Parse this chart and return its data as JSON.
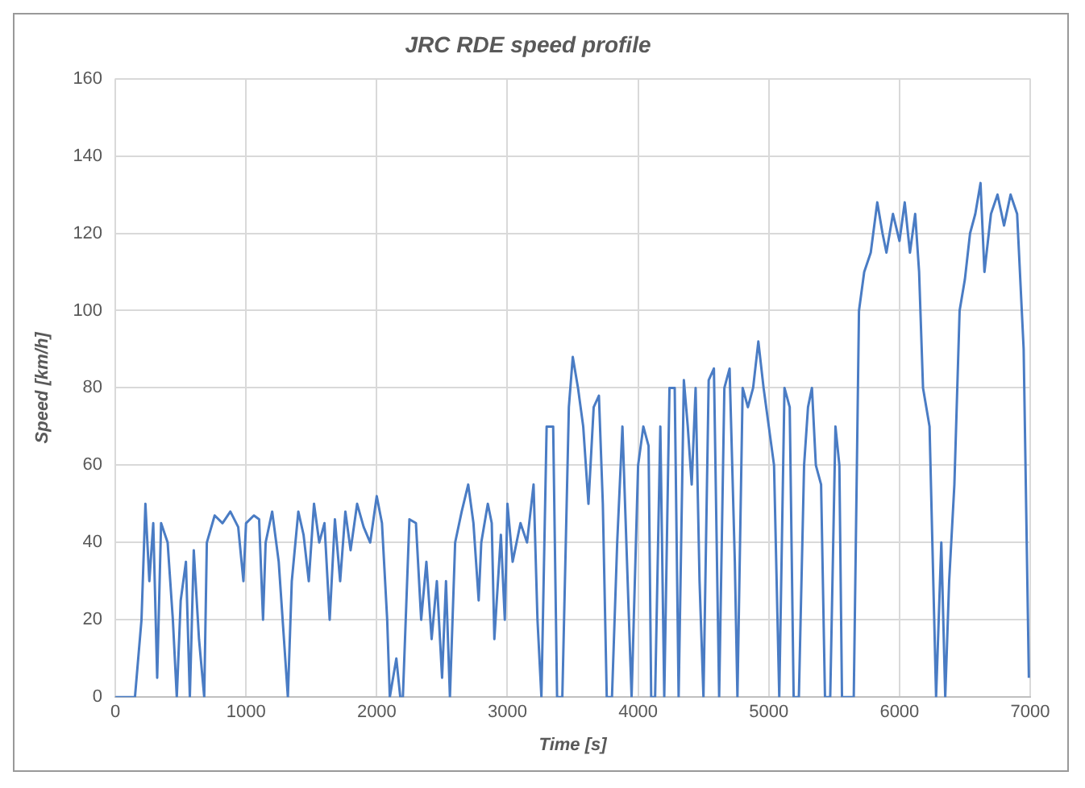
{
  "chart_data": {
    "type": "line",
    "title": "JRC RDE speed profile",
    "xlabel": "Time [s]",
    "ylabel": "Speed [km/h]",
    "x": [
      0,
      150,
      200,
      230,
      260,
      290,
      320,
      350,
      400,
      440,
      470,
      500,
      540,
      570,
      600,
      640,
      680,
      700,
      760,
      820,
      880,
      940,
      980,
      1000,
      1060,
      1100,
      1130,
      1150,
      1200,
      1250,
      1280,
      1320,
      1350,
      1400,
      1440,
      1480,
      1520,
      1560,
      1600,
      1640,
      1680,
      1720,
      1760,
      1800,
      1850,
      1900,
      1950,
      2000,
      2040,
      2080,
      2100,
      2150,
      2180,
      2200,
      2250,
      2300,
      2340,
      2380,
      2420,
      2460,
      2500,
      2530,
      2560,
      2600,
      2650,
      2700,
      2740,
      2780,
      2800,
      2850,
      2880,
      2900,
      2950,
      2980,
      3000,
      3040,
      3100,
      3150,
      3200,
      3230,
      3260,
      3300,
      3350,
      3380,
      3420,
      3470,
      3500,
      3540,
      3580,
      3620,
      3660,
      3700,
      3730,
      3760,
      3800,
      3840,
      3880,
      3920,
      3950,
      4000,
      4040,
      4080,
      4100,
      4130,
      4170,
      4200,
      4240,
      4280,
      4310,
      4350,
      4380,
      4410,
      4440,
      4470,
      4500,
      4540,
      4580,
      4620,
      4660,
      4700,
      4740,
      4760,
      4800,
      4840,
      4880,
      4920,
      4960,
      5000,
      5040,
      5080,
      5120,
      5160,
      5190,
      5230,
      5270,
      5300,
      5330,
      5360,
      5400,
      5430,
      5470,
      5510,
      5540,
      5560,
      5600,
      5650,
      5690,
      5730,
      5780,
      5830,
      5870,
      5900,
      5950,
      6000,
      6040,
      6080,
      6120,
      6150,
      6180,
      6230,
      6280,
      6320,
      6350,
      6380,
      6420,
      6460,
      6500,
      6540,
      6580,
      6620,
      6650,
      6700,
      6750,
      6800,
      6850,
      6900,
      6950,
      6990
    ],
    "series": [
      {
        "color": "#4a7cc4",
        "values": [
          0,
          0,
          20,
          50,
          30,
          45,
          5,
          45,
          40,
          20,
          0,
          25,
          35,
          0,
          38,
          15,
          0,
          40,
          47,
          45,
          48,
          44,
          30,
          45,
          47,
          46,
          20,
          40,
          48,
          35,
          20,
          0,
          30,
          48,
          42,
          30,
          50,
          40,
          45,
          20,
          46,
          30,
          48,
          38,
          50,
          44,
          40,
          52,
          45,
          20,
          0,
          10,
          0,
          0,
          46,
          45,
          20,
          35,
          15,
          30,
          5,
          30,
          0,
          40,
          48,
          55,
          45,
          25,
          40,
          50,
          45,
          15,
          42,
          20,
          50,
          35,
          45,
          40,
          55,
          20,
          0,
          70,
          70,
          0,
          0,
          75,
          88,
          80,
          70,
          50,
          75,
          78,
          50,
          0,
          0,
          40,
          70,
          30,
          0,
          60,
          70,
          65,
          0,
          0,
          70,
          0,
          80,
          80,
          0,
          82,
          70,
          55,
          80,
          30,
          0,
          82,
          85,
          0,
          80,
          85,
          35,
          0,
          80,
          75,
          80,
          92,
          80,
          70,
          60,
          0,
          80,
          75,
          0,
          0,
          60,
          75,
          80,
          60,
          55,
          0,
          0,
          70,
          60,
          0,
          0,
          0,
          100,
          110,
          115,
          128,
          120,
          115,
          125,
          118,
          128,
          115,
          125,
          110,
          80,
          70,
          0,
          40,
          0,
          30,
          55,
          100,
          108,
          120,
          125,
          133,
          110,
          125,
          130,
          122,
          130,
          125,
          90,
          5
        ]
      }
    ],
    "xlim": [
      0,
      7000
    ],
    "xticks": [
      0,
      1000,
      2000,
      3000,
      4000,
      5000,
      6000,
      7000
    ],
    "ylim": [
      0,
      160
    ],
    "yticks": [
      0,
      20,
      40,
      60,
      80,
      100,
      120,
      140,
      160
    ],
    "grid": true,
    "legend": false,
    "marker": "none",
    "line_style": "solid"
  }
}
